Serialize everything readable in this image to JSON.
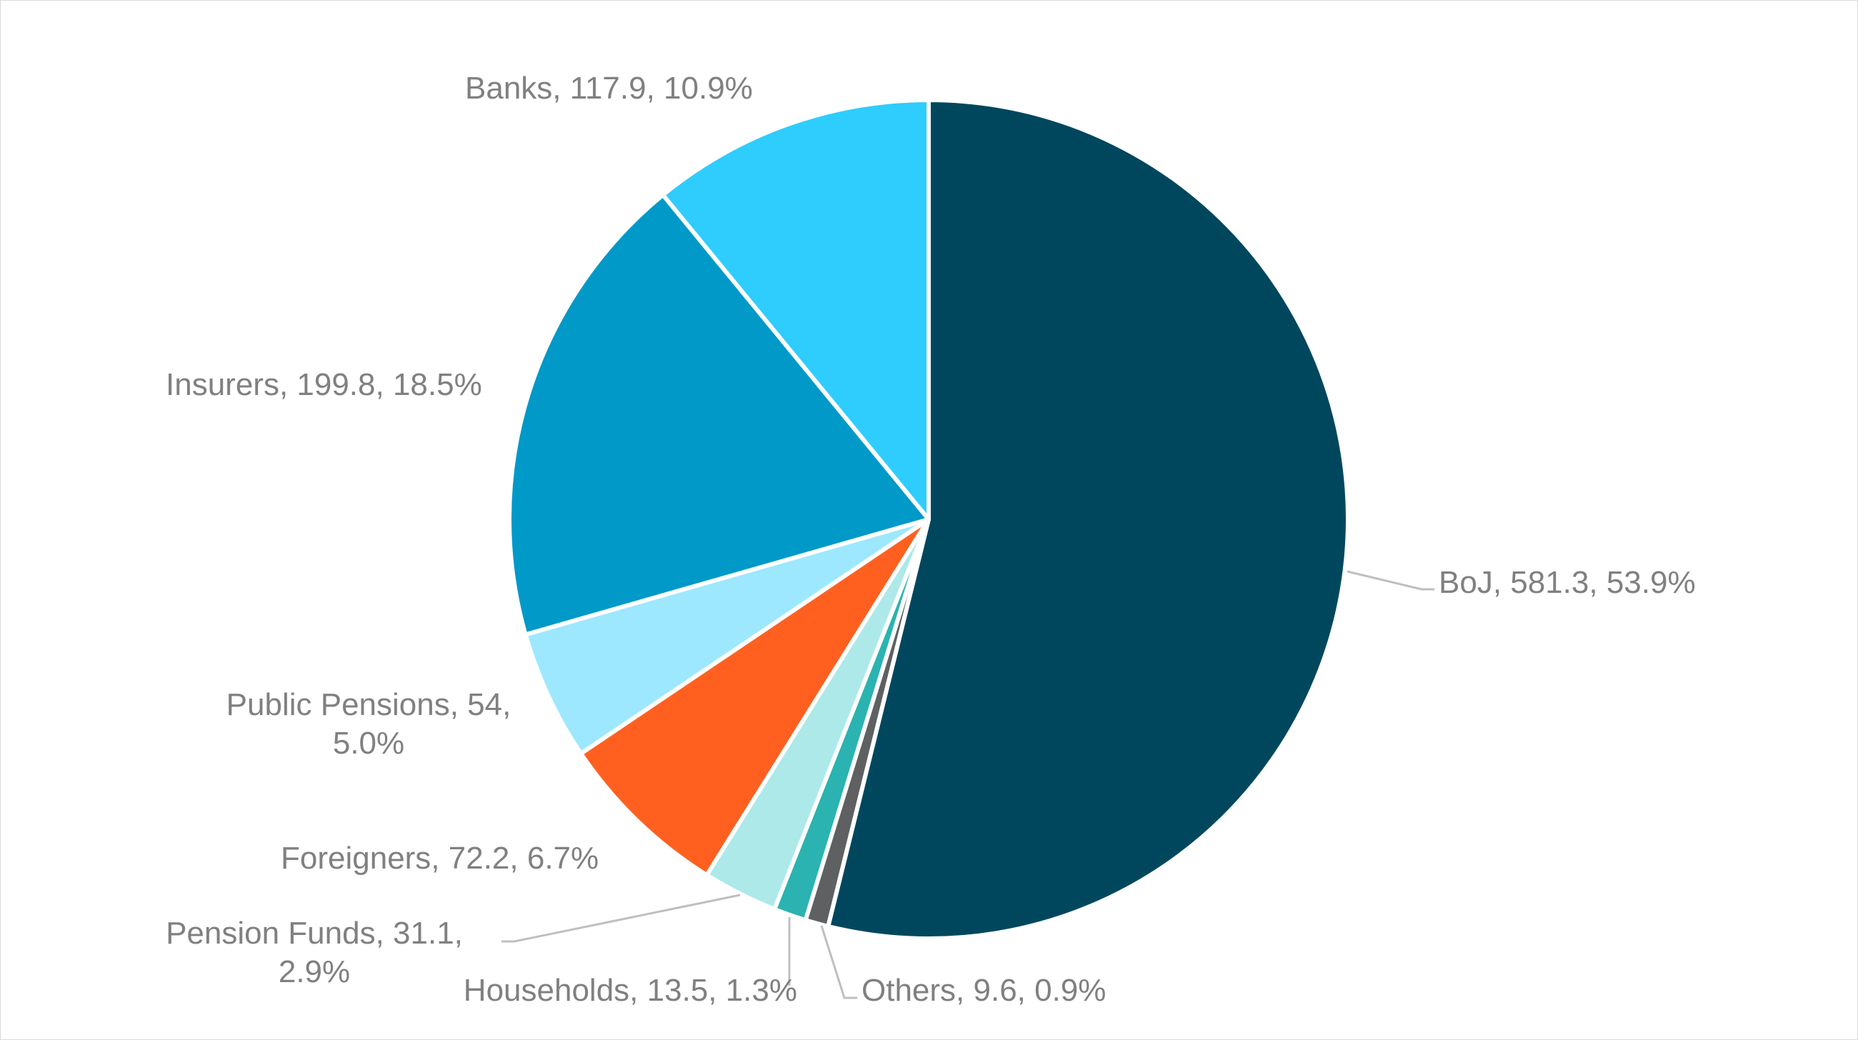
{
  "chart_data": {
    "type": "pie",
    "unit": "",
    "start_angle_deg": 0,
    "direction": "clockwise",
    "slices": [
      {
        "name": "BoJ",
        "value": 581.3,
        "percent": 53.9,
        "color": "#00475e",
        "label_lines": [
          "BoJ, 581.3, 53.9%"
        ]
      },
      {
        "name": "Others",
        "value": 9.6,
        "percent": 0.9,
        "color": "#5f6062",
        "label_lines": [
          "Others, 9.6, 0.9%"
        ]
      },
      {
        "name": "Households",
        "value": 13.5,
        "percent": 1.3,
        "color": "#2ab3b0",
        "label_lines": [
          "Households, 13.5, 1.3%"
        ]
      },
      {
        "name": "Pension Funds",
        "value": 31.1,
        "percent": 2.9,
        "color": "#ade9e9",
        "label_lines": [
          "Pension Funds, 31.1,",
          "2.9%"
        ]
      },
      {
        "name": "Foreigners",
        "value": 72.2,
        "percent": 6.7,
        "color": "#ff6020",
        "label_lines": [
          "Foreigners, 72.2, 6.7%"
        ]
      },
      {
        "name": "Public Pensions",
        "value": 54,
        "percent": 5.0,
        "color": "#9de8fe",
        "label_lines": [
          "Public Pensions, 54,",
          "5.0%"
        ]
      },
      {
        "name": "Insurers",
        "value": 199.8,
        "percent": 18.5,
        "color": "#0099c8",
        "label_lines": [
          "Insurers, 199.8, 18.5%"
        ]
      },
      {
        "name": "Banks",
        "value": 117.9,
        "percent": 10.9,
        "color": "#2ecdfe",
        "label_lines": [
          "Banks, 117.9, 10.9%"
        ]
      }
    ]
  }
}
